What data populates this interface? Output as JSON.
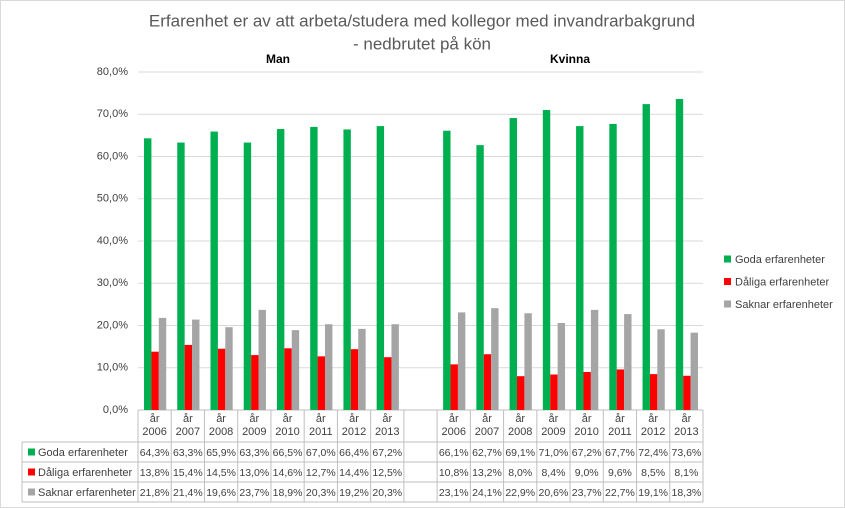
{
  "chart_data": {
    "type": "bar",
    "title": [
      "Erfarenhet er av att arbeta/studera med kollegor med invandrarbakgrund",
      "- nedbrutet på kön"
    ],
    "group_labels": [
      "Man",
      "Kvinna"
    ],
    "categories": [
      "år 2006",
      "år 2007",
      "år 2008",
      "år 2009",
      "år 2010",
      "år 2011",
      "år 2012",
      "år 2013",
      null,
      "år 2006",
      "år 2007",
      "år 2008",
      "år 2009",
      "år 2010",
      "år 2011",
      "år 2012",
      "år 2013"
    ],
    "series": [
      {
        "name": "Goda erfarenheter",
        "color": "#00b050",
        "values": [
          64.3,
          63.3,
          65.9,
          63.3,
          66.5,
          67.0,
          66.4,
          67.2,
          null,
          66.1,
          62.7,
          69.1,
          71.0,
          67.2,
          67.7,
          72.4,
          73.6
        ],
        "value_labels": [
          "64,3%",
          "63,3%",
          "65,9%",
          "63,3%",
          "66,5%",
          "67,0%",
          "66,4%",
          "67,2%",
          null,
          "66,1%",
          "62,7%",
          "69,1%",
          "71,0%",
          "67,2%",
          "67,7%",
          "72,4%",
          "73,6%"
        ]
      },
      {
        "name": "Dåliga erfarenheter",
        "color": "#ff0000",
        "values": [
          13.8,
          15.4,
          14.5,
          13.0,
          14.6,
          12.7,
          14.4,
          12.5,
          null,
          10.8,
          13.2,
          8.0,
          8.4,
          9.0,
          9.6,
          8.5,
          8.1
        ],
        "value_labels": [
          "13,8%",
          "15,4%",
          "14,5%",
          "13,0%",
          "14,6%",
          "12,7%",
          "14,4%",
          "12,5%",
          null,
          "10,8%",
          "13,2%",
          "8,0%",
          "8,4%",
          "9,0%",
          "9,6%",
          "8,5%",
          "8,1%"
        ]
      },
      {
        "name": "Saknar erfarenheter",
        "color": "#a5a5a5",
        "values": [
          21.8,
          21.4,
          19.6,
          23.7,
          18.9,
          20.3,
          19.2,
          20.3,
          null,
          23.1,
          24.1,
          22.9,
          20.6,
          23.7,
          22.7,
          19.1,
          18.3
        ],
        "value_labels": [
          "21,8%",
          "21,4%",
          "19,6%",
          "23,7%",
          "18,9%",
          "20,3%",
          "19,2%",
          "20,3%",
          null,
          "23,1%",
          "24,1%",
          "22,9%",
          "20,6%",
          "23,7%",
          "22,7%",
          "19,1%",
          "18,3%"
        ]
      }
    ],
    "ylim": [
      0,
      80
    ],
    "yticks": [
      {
        "value": 0,
        "label": "0,0%"
      },
      {
        "value": 10,
        "label": "10,0%"
      },
      {
        "value": 20,
        "label": "20,0%"
      },
      {
        "value": 30,
        "label": "30,0%"
      },
      {
        "value": 40,
        "label": "40,0%"
      },
      {
        "value": 50,
        "label": "50,0%"
      },
      {
        "value": 60,
        "label": "60,0%"
      },
      {
        "value": 70,
        "label": "70,0%"
      },
      {
        "value": 80,
        "label": "80,0%"
      }
    ],
    "grid": true,
    "legend": "right"
  }
}
